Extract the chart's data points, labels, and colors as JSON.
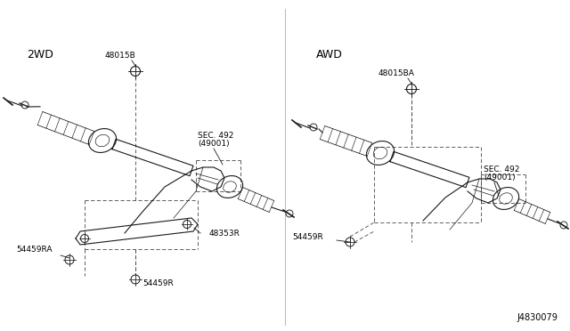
{
  "bg_color": "#ffffff",
  "line_color": "#1a1a1a",
  "dash_color": "#444444",
  "text_color": "#000000",
  "label_2wd": "2WD",
  "label_awd": "AWD",
  "diagram_id": "J4830079",
  "fig_w": 6.4,
  "fig_h": 3.72,
  "dpi": 100,
  "font_size_header": 9,
  "font_size_part": 6.5,
  "font_size_id": 7
}
